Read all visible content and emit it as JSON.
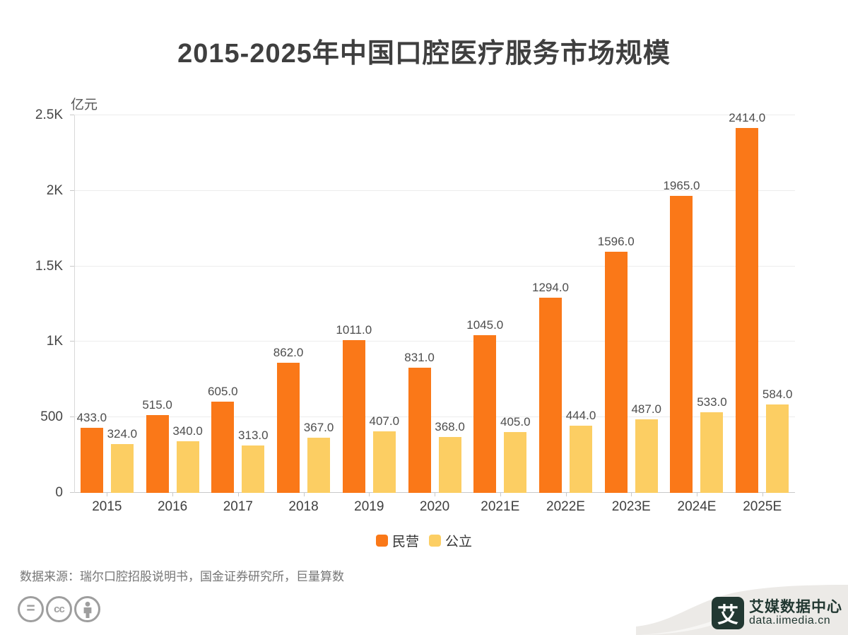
{
  "title": "2015-2025年中国口腔医疗服务市场规模",
  "source_note": "数据来源：瑞尔口腔招股说明书，国金证券研究所，巨量算数",
  "colors": {
    "private_series": "#FA7818",
    "public_series": "#FCCE63",
    "gridline": "#ededed",
    "axis": "#c9c9c9",
    "logo_dark": "#223832",
    "swoosh_gray": "#eceae7"
  },
  "chart_data": {
    "type": "bar",
    "title": "2015-2025年中国口腔医疗服务市场规模",
    "xlabel": "",
    "ylabel": "亿元",
    "ylim": [
      0,
      2500
    ],
    "grid": true,
    "legend_position": "bottom",
    "value_label_decimals": 1,
    "categories": [
      "2015",
      "2016",
      "2017",
      "2018",
      "2019",
      "2020",
      "2021E",
      "2022E",
      "2023E",
      "2024E",
      "2025E"
    ],
    "series": [
      {
        "name": "民营",
        "color": "#FA7818",
        "values": [
          433.0,
          515.0,
          605.0,
          862.0,
          1011.0,
          831.0,
          1045.0,
          1294.0,
          1596.0,
          1965.0,
          2414.0
        ]
      },
      {
        "name": "公立",
        "color": "#FCCE63",
        "values": [
          324.0,
          340.0,
          313.0,
          367.0,
          407.0,
          368.0,
          405.0,
          444.0,
          487.0,
          533.0,
          584.0
        ]
      }
    ],
    "y_ticks": [
      {
        "value": 0,
        "label": "0"
      },
      {
        "value": 500,
        "label": "500"
      },
      {
        "value": 1000,
        "label": "1K"
      },
      {
        "value": 1500,
        "label": "1.5K"
      },
      {
        "value": 2000,
        "label": "2K"
      },
      {
        "value": 2500,
        "label": "2.5K"
      }
    ]
  },
  "footer": {
    "cc": {
      "equals": "=",
      "cc": "cc"
    },
    "logo": {
      "glyph": "艾",
      "name_text": "艾媒数据中心",
      "domain_text": "data.iimedia.cn"
    }
  }
}
